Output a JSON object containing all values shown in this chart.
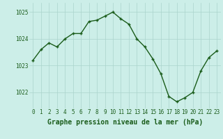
{
  "x": [
    0,
    1,
    2,
    3,
    4,
    5,
    6,
    7,
    8,
    9,
    10,
    11,
    12,
    13,
    14,
    15,
    16,
    17,
    18,
    19,
    20,
    21,
    22,
    23
  ],
  "y": [
    1023.2,
    1023.6,
    1023.85,
    1023.7,
    1024.0,
    1024.2,
    1024.2,
    1024.65,
    1024.7,
    1024.85,
    1025.0,
    1024.75,
    1024.55,
    1024.0,
    1023.7,
    1023.25,
    1022.7,
    1021.85,
    1021.65,
    1021.8,
    1022.0,
    1022.8,
    1023.3,
    1023.55
  ],
  "line_color": "#1a5c1a",
  "marker": "+",
  "marker_size": 3.5,
  "marker_linewidth": 1.0,
  "line_width": 1.0,
  "bg_color": "#cceee8",
  "grid_color": "#aad4cc",
  "xlabel": "Graphe pression niveau de la mer (hPa)",
  "xlabel_fontsize": 7,
  "xlabel_color": "#1a5c1a",
  "yticks": [
    1022,
    1023,
    1024,
    1025
  ],
  "ylim": [
    1021.4,
    1025.35
  ],
  "xlim": [
    -0.5,
    23.5
  ],
  "xticks": [
    0,
    1,
    2,
    3,
    4,
    5,
    6,
    7,
    8,
    9,
    10,
    11,
    12,
    13,
    14,
    15,
    16,
    17,
    18,
    19,
    20,
    21,
    22,
    23
  ],
  "tick_fontsize": 5.5,
  "tick_color": "#1a5c1a"
}
